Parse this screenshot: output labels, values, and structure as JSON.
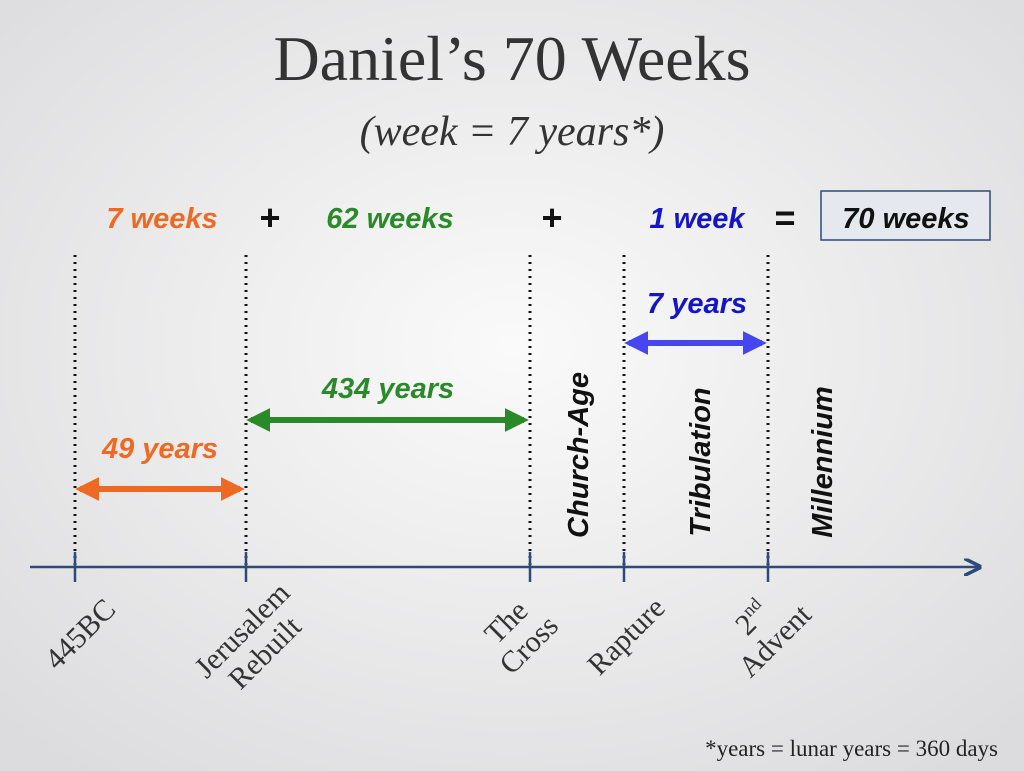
{
  "header": {
    "title": "Daniel’s 70 Weeks",
    "subtitle": "(week = 7 years*)"
  },
  "equation": {
    "first": "7 weeks",
    "plus1": "+",
    "second": "62 weeks",
    "plus2": "+",
    "third": "1 week",
    "equals": "=",
    "total": "70 weeks"
  },
  "spans": [
    {
      "label": "49 years"
    },
    {
      "label": "434 years"
    },
    {
      "label": "7 years"
    }
  ],
  "periods": [
    "Church-Age",
    "Tribulation",
    "Millennium"
  ],
  "markers": [
    {
      "lines": [
        "445BC"
      ]
    },
    {
      "lines": [
        "Jerusalem",
        "Rebuilt"
      ]
    },
    {
      "lines": [
        "The",
        "Cross"
      ]
    },
    {
      "lines": [
        "Rapture"
      ]
    },
    {
      "ordinal": "2",
      "ordinal_suffix": "nd",
      "lines": [
        "Advent"
      ]
    }
  ],
  "footnote": "*years = lunar years = 360 days"
}
